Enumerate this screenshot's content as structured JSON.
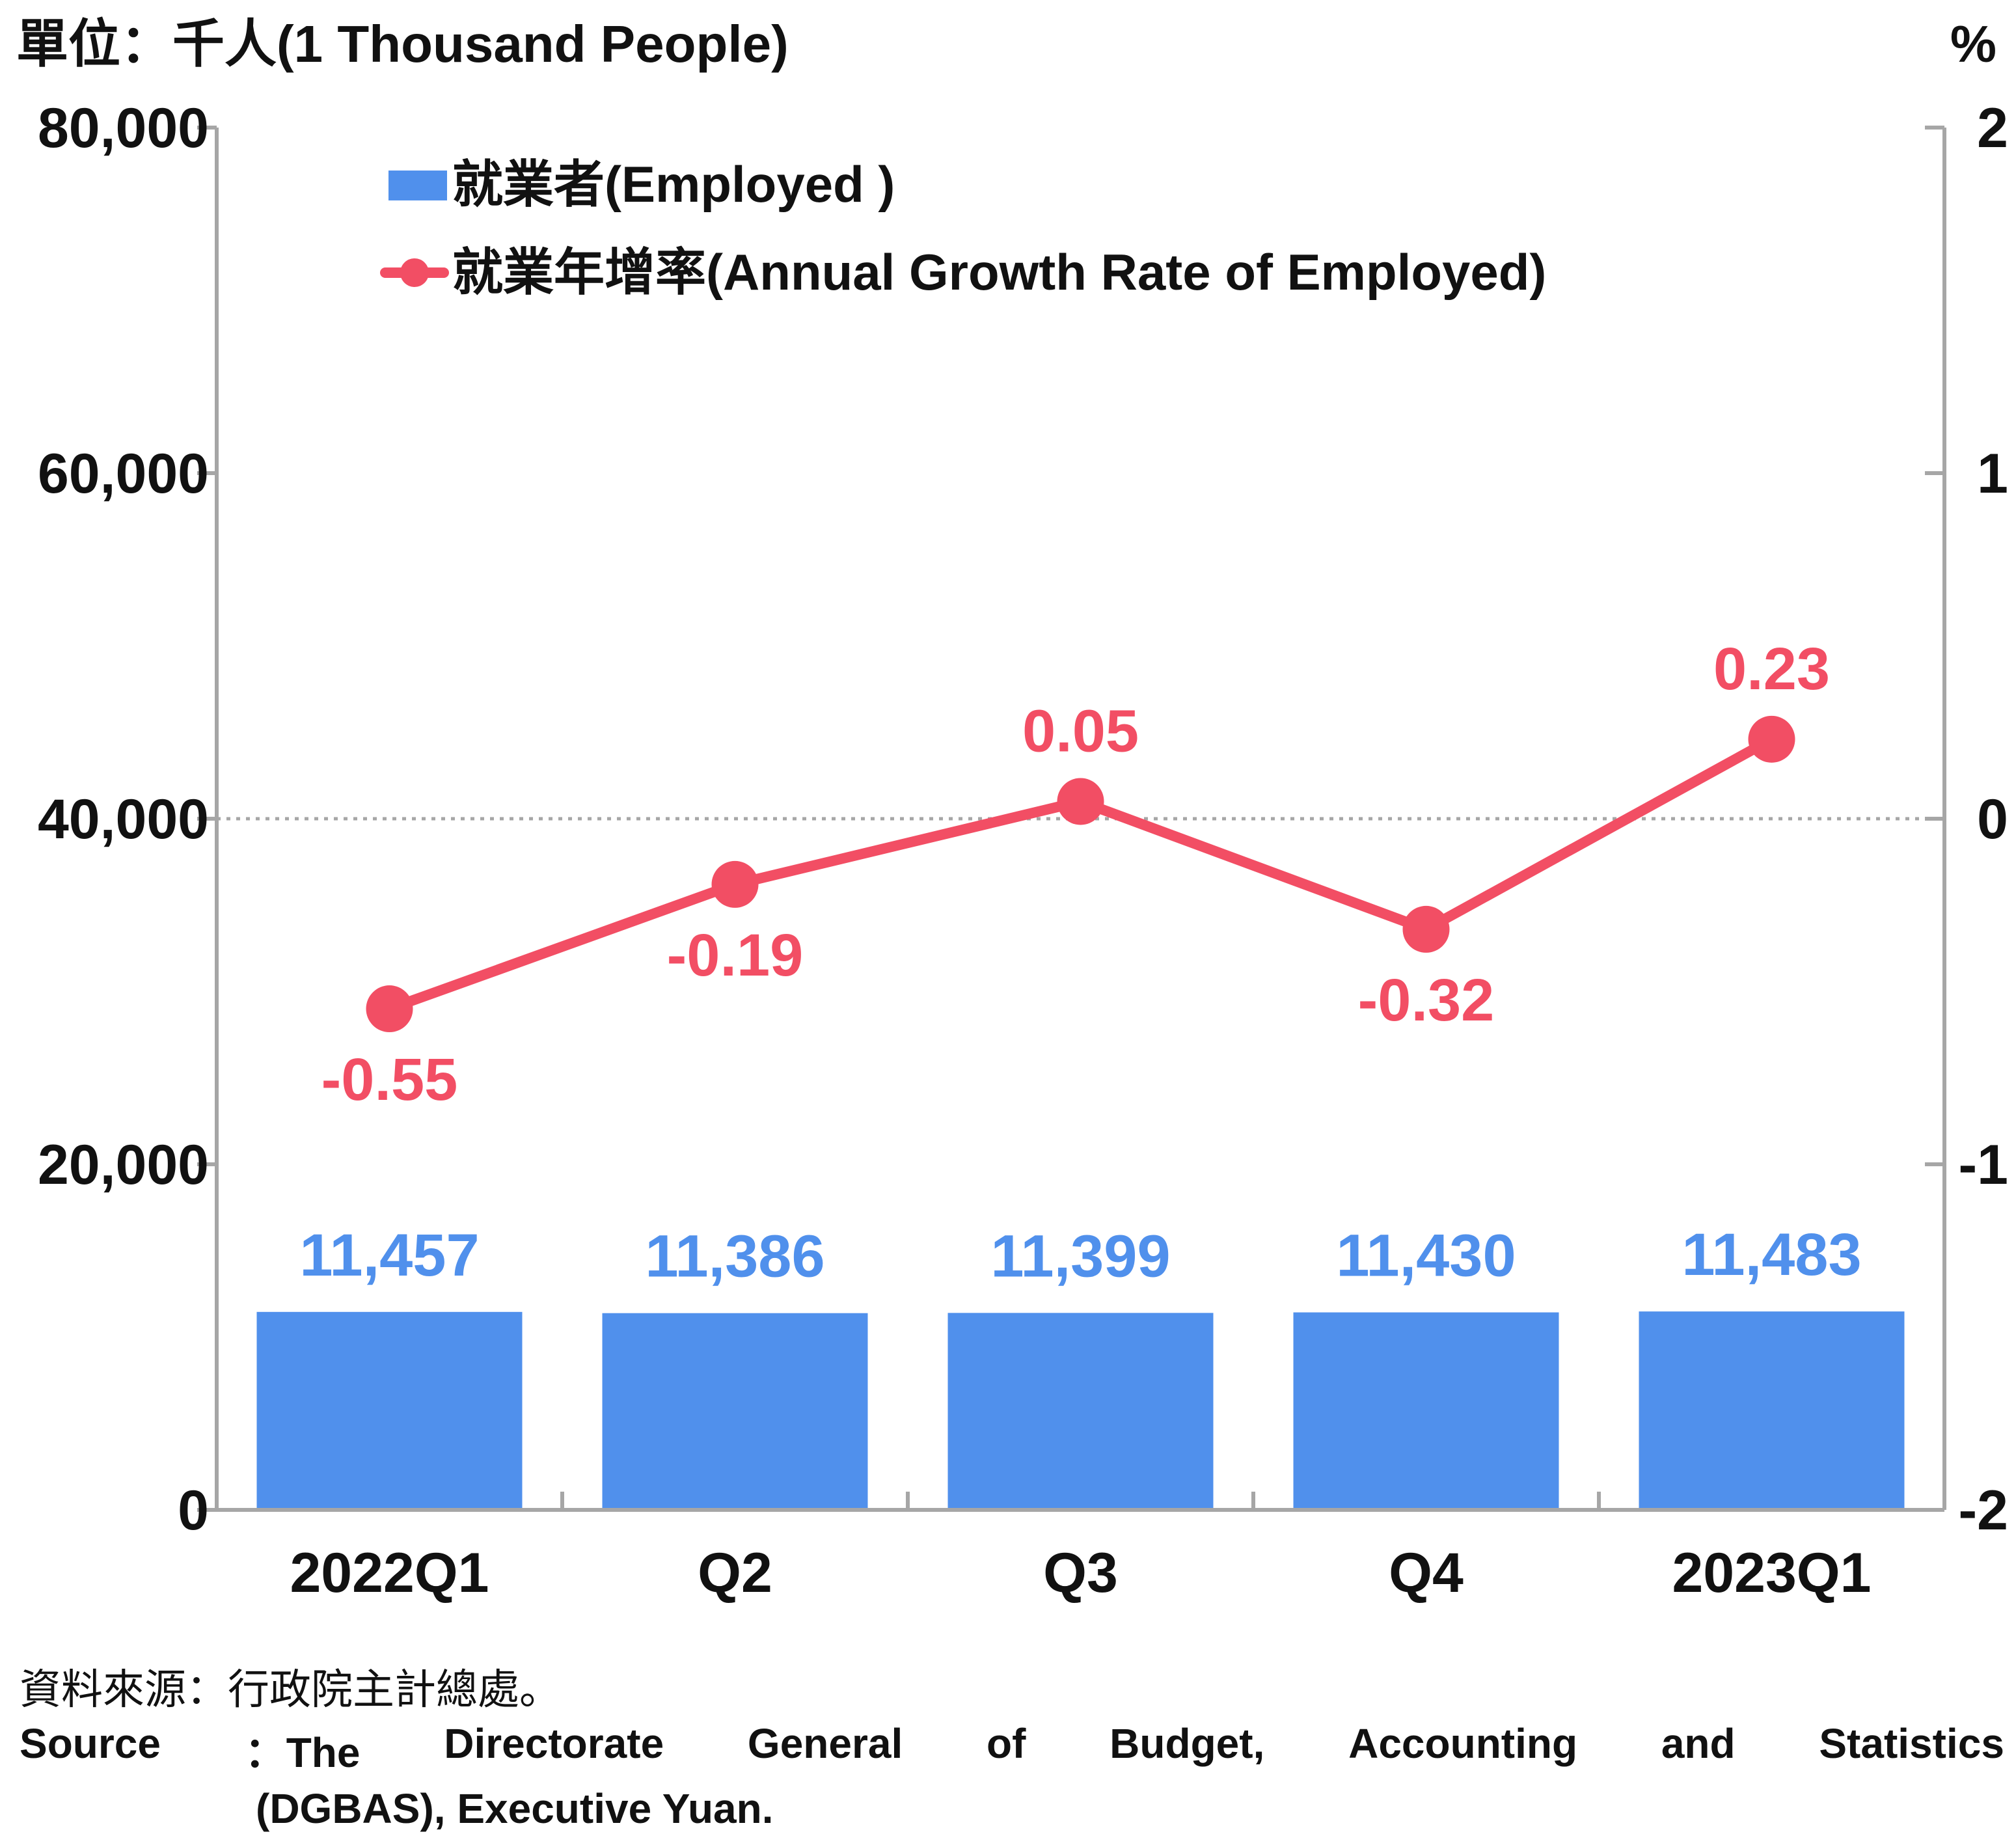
{
  "unit_left": "單位：千人(1 Thousand People)",
  "unit_right": "%",
  "source_zh": "資料來源：行政院主計總處。",
  "source_en_line1": [
    "Source",
    "：The",
    "Directorate",
    "General",
    "of",
    "Budget,",
    "Accounting",
    "and",
    "Statistics"
  ],
  "source_en_line2": "(DGBAS), Executive Yuan.",
  "colors": {
    "bar": "#5090EC",
    "line": "#F24E64",
    "axis": "#A6A6A6",
    "zero_line": "#A6A6A6",
    "text": "#111111"
  },
  "chart_data": {
    "type": "bar",
    "categories": [
      "2022Q1",
      "Q2",
      "Q3",
      "Q4",
      "2023Q1"
    ],
    "series": [
      {
        "name": "就業者(Employed )",
        "type": "bar",
        "axis": "left",
        "values": [
          11457,
          11386,
          11399,
          11430,
          11483
        ],
        "labels": [
          "11,457",
          "11,386",
          "11,399",
          "11,430",
          "11,483"
        ]
      },
      {
        "name": "就業年增率(Annual Growth Rate of Employed)",
        "type": "line",
        "axis": "right",
        "values": [
          -0.55,
          -0.19,
          0.05,
          -0.32,
          0.23
        ],
        "labels": [
          "-0.55",
          "-0.19",
          "0.05",
          "-0.32",
          "0.23"
        ]
      }
    ],
    "y_left": {
      "lim": [
        0,
        80000
      ],
      "ticks": [
        0,
        20000,
        40000,
        60000,
        80000
      ],
      "tick_labels": [
        "0",
        "20,000",
        "40,000",
        "60,000",
        "80,000"
      ]
    },
    "y_right": {
      "lim": [
        -2,
        2
      ],
      "ticks": [
        -2,
        -1,
        0,
        1,
        2
      ],
      "tick_labels": [
        "-2",
        "-1",
        "0",
        "1",
        "2"
      ]
    },
    "legend_position": "top-left",
    "grid": false,
    "reference_line": {
      "axis": "right",
      "value": 0,
      "style": "dotted"
    }
  }
}
